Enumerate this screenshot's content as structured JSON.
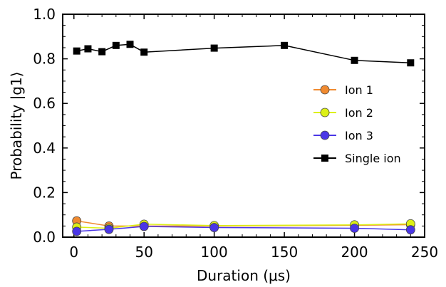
{
  "chart_data": {
    "type": "line",
    "title": "",
    "xlabel": "Duration (μs)",
    "ylabel": "Probability  |g1⟩",
    "xlim": [
      -8,
      250
    ],
    "ylim": [
      0,
      1.0
    ],
    "xticks": [
      "0",
      "50",
      "100",
      "150",
      "200",
      "250"
    ],
    "yticks": [
      "0.0",
      "0.2",
      "0.4",
      "0.6",
      "0.8",
      "1.0"
    ],
    "grid": false,
    "legend_position": "center-right",
    "series": [
      {
        "name": "Ion 1",
        "color": "#f08a30",
        "marker": "circle",
        "points": [
          [
            2,
            0.073
          ],
          [
            25,
            0.05
          ],
          [
            50,
            0.05
          ],
          [
            100,
            0.05
          ],
          [
            200,
            0.053
          ],
          [
            240,
            0.056
          ]
        ]
      },
      {
        "name": "Ion 2",
        "color": "#dcf016",
        "marker": "circle",
        "points": [
          [
            2,
            0.045
          ],
          [
            25,
            0.04
          ],
          [
            50,
            0.058
          ],
          [
            100,
            0.052
          ],
          [
            200,
            0.055
          ],
          [
            240,
            0.06
          ]
        ]
      },
      {
        "name": "Ion 3",
        "color": "#4a36e6",
        "marker": "circle",
        "points": [
          [
            2,
            0.026
          ],
          [
            25,
            0.035
          ],
          [
            50,
            0.048
          ],
          [
            100,
            0.043
          ],
          [
            200,
            0.04
          ],
          [
            240,
            0.033
          ]
        ]
      },
      {
        "name": "Single ion",
        "color": "#000000",
        "marker": "square",
        "points": [
          [
            2,
            0.835
          ],
          [
            10,
            0.845
          ],
          [
            20,
            0.832
          ],
          [
            30,
            0.86
          ],
          [
            40,
            0.865
          ],
          [
            50,
            0.83
          ],
          [
            100,
            0.848
          ],
          [
            150,
            0.86
          ],
          [
            200,
            0.793
          ],
          [
            240,
            0.782
          ]
        ]
      }
    ]
  }
}
